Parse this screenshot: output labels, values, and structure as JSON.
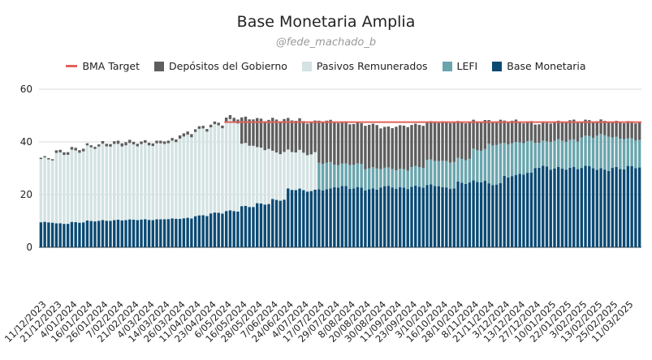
{
  "title": "Base Monetaria Amplia",
  "subtitle": "@fede_machado_b",
  "colors": {
    "bma_target": "#e0625c",
    "depositos": "#5e5e5e",
    "pasivos": "#d3e2e2",
    "lefi": "#6aa5ad",
    "base": "#0b4a73",
    "grid": "#d9d9d9",
    "axis_text": "#222222"
  },
  "legend": [
    {
      "key": "bma_target",
      "label": "BMA Target",
      "kind": "line"
    },
    {
      "key": "depositos",
      "label": "Depósitos del Gobierno",
      "kind": "box"
    },
    {
      "key": "pasivos",
      "label": "Pasivos Remunerados",
      "kind": "box"
    },
    {
      "key": "lefi",
      "label": "LEFI",
      "kind": "box"
    },
    {
      "key": "base",
      "label": "Base Monetaria",
      "kind": "box"
    }
  ],
  "chart_data": {
    "type": "bar",
    "stacked": true,
    "title": "Base Monetaria Amplia",
    "ylim": [
      -20,
      60
    ],
    "yticks": [
      0,
      20,
      40,
      60
    ],
    "grid": true,
    "legend_position": "top",
    "categories": [
      "11/12/2023",
      "21/12/2023",
      "4/01/2024",
      "16/01/2024",
      "26/01/2024",
      "7/02/2024",
      "21/02/2024",
      "4/03/2024",
      "14/03/2024",
      "26/03/2024",
      "11/04/2024",
      "23/04/2024",
      "6/05/2024",
      "16/05/2024",
      "28/05/2024",
      "7/06/2024",
      "24/06/2024",
      "4/07/2024",
      "17/07/2024",
      "29/07/2024",
      "8/08/2024",
      "20/08/2024",
      "30/08/2024",
      "11/09/2024",
      "23/09/2024",
      "3/10/2024",
      "16/10/2024",
      "28/10/2024",
      "8/11/2024",
      "21/11/2024",
      "3/12/2024",
      "13/12/2024",
      "27/12/2024",
      "10/01/2025",
      "22/01/2025",
      "3/02/2025",
      "13/02/2025",
      "25/02/2025",
      "11/03/2025"
    ],
    "bars_per_category": 4,
    "series": [
      {
        "name": "Base Monetaria",
        "key": "base",
        "values": [
          9.5,
          9.0,
          9.5,
          10.0,
          10.2,
          10.4,
          10.5,
          10.5,
          10.8,
          11.0,
          12.0,
          13.0,
          13.8,
          15.5,
          16.5,
          18.0,
          22.0,
          21.5,
          22.0,
          23.0,
          22.5,
          22.0,
          23.0,
          22.5,
          23.0,
          23.5,
          22.5,
          24.5,
          25.0,
          24.0,
          27.0,
          28.0,
          30.5,
          30.0,
          30.0,
          30.5,
          29.5,
          30.0,
          30.5
        ]
      },
      {
        "name": "LEFI",
        "key": "lefi",
        "values": [
          0,
          0,
          0,
          0,
          0,
          0,
          0,
          0,
          0,
          0,
          0,
          0,
          0,
          0,
          0,
          0,
          0,
          0,
          10.0,
          8.5,
          9.0,
          8.0,
          7.0,
          7.0,
          7.5,
          9.5,
          10.0,
          9.0,
          12.0,
          15.0,
          12.5,
          12.0,
          9.5,
          10.5,
          10.5,
          11.5,
          13.0,
          11.5,
          10.5
        ]
      },
      {
        "name": "Pasivos Remunerados",
        "key": "pasivos",
        "values": [
          24.0,
          26.5,
          27.0,
          28.0,
          28.5,
          28.5,
          28.5,
          28.5,
          29.0,
          31.0,
          32.5,
          33.0,
          34.0,
          23.5,
          21.0,
          18.0,
          14.5,
          14.0,
          0,
          0,
          0,
          0,
          0,
          0,
          0,
          0,
          0,
          0,
          0,
          0,
          0,
          0,
          0,
          0,
          0,
          0,
          0,
          0,
          0
        ]
      },
      {
        "name": "Depósitos del Gobierno",
        "key": "depositos",
        "values": [
          0.5,
          1.0,
          1.0,
          0.8,
          1.0,
          1.2,
          1.0,
          1.0,
          1.0,
          1.2,
          1.0,
          1.0,
          1.5,
          10.0,
          11.0,
          12.5,
          12.0,
          12.0,
          16.0,
          16.0,
          15.5,
          16.5,
          15.5,
          16.5,
          16.0,
          14.5,
          15.0,
          14.0,
          11.0,
          9.0,
          8.5,
          7.5,
          7.0,
          7.0,
          7.5,
          6.0,
          5.5,
          6.0,
          6.5
        ]
      }
    ],
    "bma_target": {
      "name": "BMA Target",
      "value": 47.5,
      "start_category": "6/05/2024"
    }
  }
}
